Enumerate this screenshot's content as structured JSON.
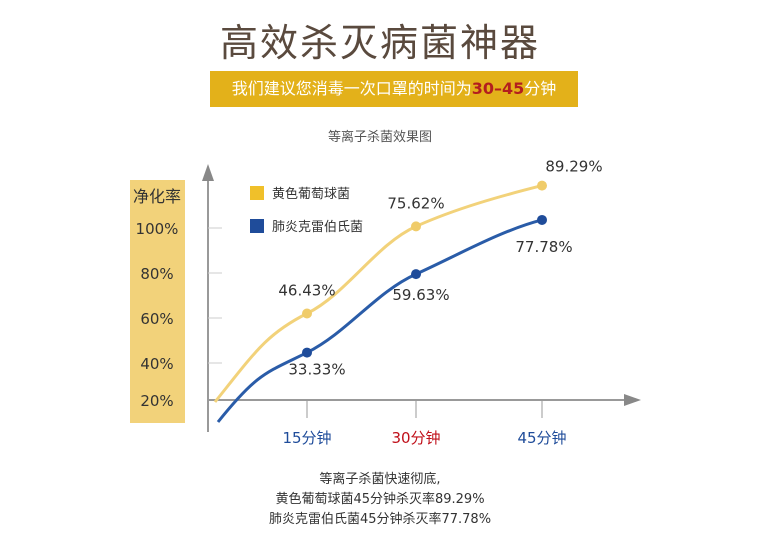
{
  "title": "高效杀灭病菌神器",
  "banner": {
    "prefix": "我们建议您消毒一次口罩的时间为",
    "highlight": "30–45",
    "suffix": "分钟"
  },
  "colors": {
    "banner": "#e3b11a",
    "highlight": "#b31e1e",
    "yellow_series": "#f2d27a",
    "yellow_point": "#f0cc6a",
    "blue_series": "#2a5ca8",
    "blue_point": "#1f4c9a",
    "ylabel_bg": "#f2d27a"
  },
  "chart_data": {
    "type": "line",
    "title": "等离子杀菌效果图",
    "ylabel": "净化率",
    "yticks": [
      "100%",
      "80%",
      "60%",
      "40%",
      "20%"
    ],
    "x": [
      "15分钟",
      "30分钟",
      "45分钟"
    ],
    "x_highlight": "30分钟",
    "series": [
      {
        "name": "黄色葡萄球菌",
        "values": [
          46.43,
          75.62,
          89.29
        ],
        "labels": [
          "46.43%",
          "75.62%",
          "89.29%"
        ]
      },
      {
        "name": "肺炎克雷伯氏菌",
        "values": [
          33.33,
          59.63,
          77.78
        ],
        "labels": [
          "33.33%",
          "59.63%",
          "77.78%"
        ]
      }
    ]
  },
  "footer": {
    "line1": "等离子杀菌快速彻底,",
    "line2": "黄色葡萄球菌45分钟杀灭率89.29%",
    "line3": "肺炎克雷伯氏菌45分钟杀灭率77.78%"
  }
}
